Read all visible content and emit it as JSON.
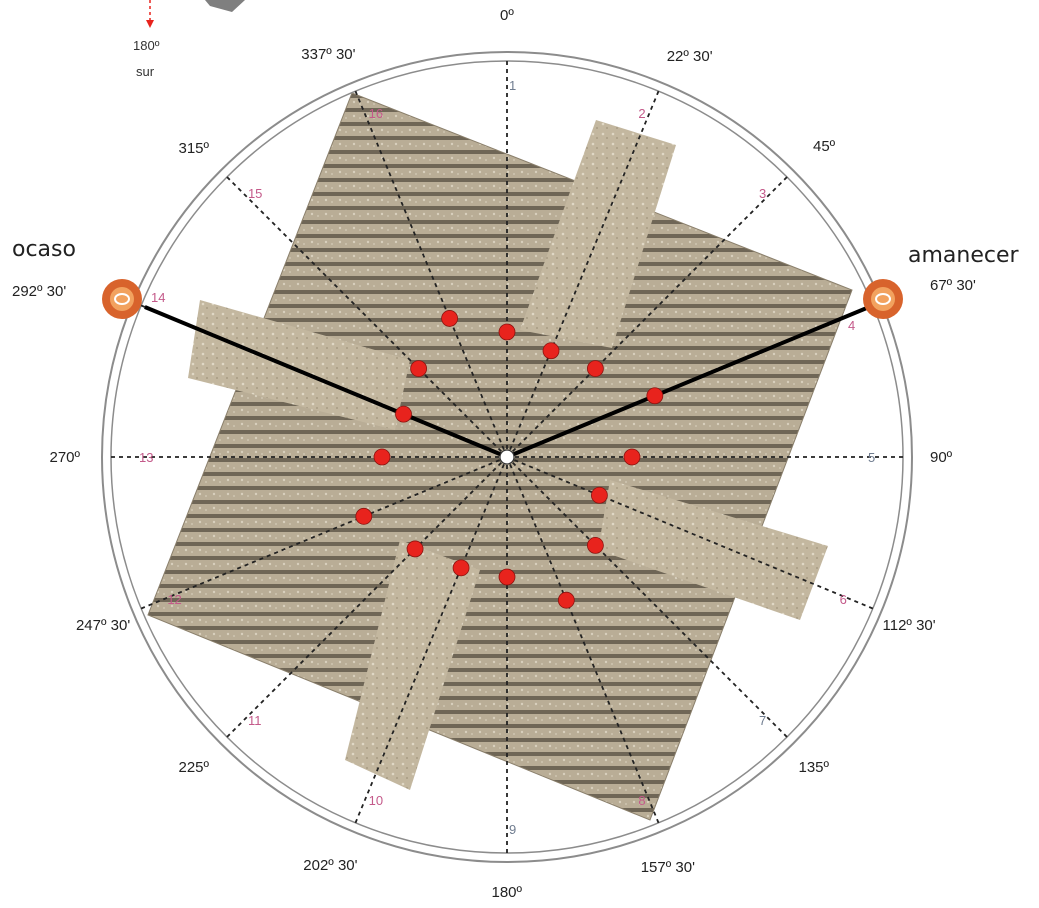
{
  "colors": {
    "circle_line": "#8c8c8c",
    "roof_tiles": "#b7ab94",
    "roof_dark": "#7a705f",
    "dashed_line": "#222222",
    "point_red": "#e8231d",
    "marker_orange": "#d8632c",
    "number_pink": "#c45a8a",
    "number_gray": "#6f7c8f"
  },
  "top_left": {
    "degree": "180º",
    "word": "sur"
  },
  "labels": {
    "ocaso": "ocaso",
    "amanecer": "amanecer"
  },
  "degree_labels": [
    "0º",
    "22º 30'",
    "45º",
    "67º 30'",
    "90º",
    "112º 30'",
    "135º",
    "157º 30'",
    "180º",
    "202º 30'",
    "225º",
    "247º 30'",
    "270º",
    "292º 30'",
    "315º",
    "337º 30'"
  ],
  "point_numbers": [
    {
      "n": "1",
      "color": "gray"
    },
    {
      "n": "2",
      "color": "pink"
    },
    {
      "n": "3",
      "color": "pink"
    },
    {
      "n": "4",
      "color": "pink"
    },
    {
      "n": "5",
      "color": "gray"
    },
    {
      "n": "6",
      "color": "pink"
    },
    {
      "n": "7",
      "color": "gray"
    },
    {
      "n": "8",
      "color": "pink"
    },
    {
      "n": "9",
      "color": "gray"
    },
    {
      "n": "10",
      "color": "pink"
    },
    {
      "n": "11",
      "color": "pink"
    },
    {
      "n": "12",
      "color": "pink"
    },
    {
      "n": "13",
      "color": "pink"
    },
    {
      "n": "14",
      "color": "pink"
    },
    {
      "n": "15",
      "color": "pink"
    },
    {
      "n": "16",
      "color": "pink"
    }
  ],
  "markers": [
    {
      "name": "ocaso-marker-icon"
    },
    {
      "name": "amanecer-marker-icon"
    }
  ]
}
